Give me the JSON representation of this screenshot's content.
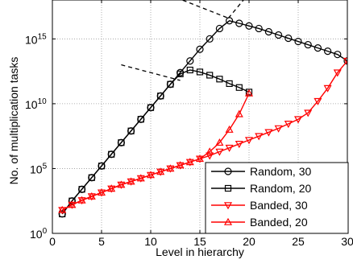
{
  "chart_data": {
    "type": "line",
    "title": "",
    "xlabel": "Level in hierarchy",
    "ylabel": "No. of multiplication tasks",
    "xlim": [
      0,
      30
    ],
    "ylim_log10": [
      0,
      18
    ],
    "y_scale": "log",
    "grid": true,
    "legend_position": "bottom-right",
    "x_ticks": [
      0,
      5,
      10,
      15,
      20,
      25,
      30
    ],
    "y_ticks": [
      {
        "exp": 0,
        "base": "10",
        "sup": "0"
      },
      {
        "exp": 5,
        "base": "10",
        "sup": "5"
      },
      {
        "exp": 10,
        "base": "10",
        "sup": "10"
      },
      {
        "exp": 15,
        "base": "10",
        "sup": "15"
      }
    ],
    "series": [
      {
        "name": "Random, 30",
        "color": "#000000",
        "marker": "circle",
        "x": [
          1,
          2,
          3,
          4,
          5,
          6,
          7,
          8,
          9,
          10,
          11,
          12,
          13,
          14,
          15,
          16,
          17,
          18,
          19,
          20,
          21,
          22,
          23,
          24,
          25,
          26,
          27,
          28,
          29,
          30
        ],
        "log10_y": [
          1.5,
          2.5,
          3.4,
          4.3,
          5.2,
          6.1,
          7.0,
          7.9,
          8.8,
          9.7,
          10.6,
          11.5,
          12.4,
          13.3,
          14.2,
          15.0,
          15.8,
          16.4,
          16.2,
          16.0,
          15.8,
          15.55,
          15.3,
          15.05,
          14.8,
          14.55,
          14.3,
          14.05,
          13.8,
          13.3
        ]
      },
      {
        "name": "Random, 20",
        "color": "#000000",
        "marker": "square",
        "x": [
          1,
          2,
          3,
          4,
          5,
          6,
          7,
          8,
          9,
          10,
          11,
          12,
          13,
          14,
          15,
          16,
          17,
          18,
          19,
          20
        ],
        "log10_y": [
          1.5,
          2.5,
          3.4,
          4.3,
          5.2,
          6.1,
          7.0,
          7.9,
          8.8,
          9.7,
          10.6,
          11.5,
          12.3,
          12.6,
          12.45,
          12.2,
          11.9,
          11.55,
          11.25,
          10.9
        ]
      },
      {
        "name": "Banded, 30",
        "color": "#ff0000",
        "marker": "triangle-down",
        "x": [
          1,
          2,
          3,
          4,
          5,
          6,
          7,
          8,
          9,
          10,
          11,
          12,
          13,
          14,
          15,
          16,
          17,
          18,
          19,
          20,
          21,
          22,
          23,
          24,
          25,
          26,
          27,
          28,
          29,
          30
        ],
        "log10_y": [
          1.8,
          2.2,
          2.55,
          2.85,
          3.15,
          3.45,
          3.75,
          4.0,
          4.25,
          4.5,
          4.75,
          5.0,
          5.25,
          5.5,
          5.75,
          6.0,
          6.3,
          6.6,
          6.9,
          7.2,
          7.5,
          7.8,
          8.1,
          8.45,
          8.8,
          9.3,
          10.2,
          11.2,
          12.4,
          13.3
        ]
      },
      {
        "name": "Banded, 20",
        "color": "#ff0000",
        "marker": "triangle-up",
        "x": [
          1,
          2,
          3,
          4,
          5,
          6,
          7,
          8,
          9,
          10,
          11,
          12,
          13,
          14,
          15,
          16,
          17,
          18,
          19,
          20
        ],
        "log10_y": [
          1.8,
          2.2,
          2.55,
          2.85,
          3.15,
          3.45,
          3.75,
          4.0,
          4.25,
          4.5,
          4.75,
          5.0,
          5.25,
          5.5,
          5.75,
          6.3,
          7.0,
          8.0,
          9.2,
          10.8
        ]
      }
    ],
    "annotation_lines": [
      {
        "style": "dashed",
        "x": [
          7,
          13
        ],
        "log10_y": [
          13.0,
          11.8
        ]
      },
      {
        "style": "dashed",
        "x": [
          11.2,
          17.9
        ],
        "log10_y": [
          18.6,
          16.6
        ]
      },
      {
        "style": "dashed",
        "x": [
          17.9,
          20.2
        ],
        "log10_y": [
          16.6,
          18.7
        ]
      }
    ]
  }
}
